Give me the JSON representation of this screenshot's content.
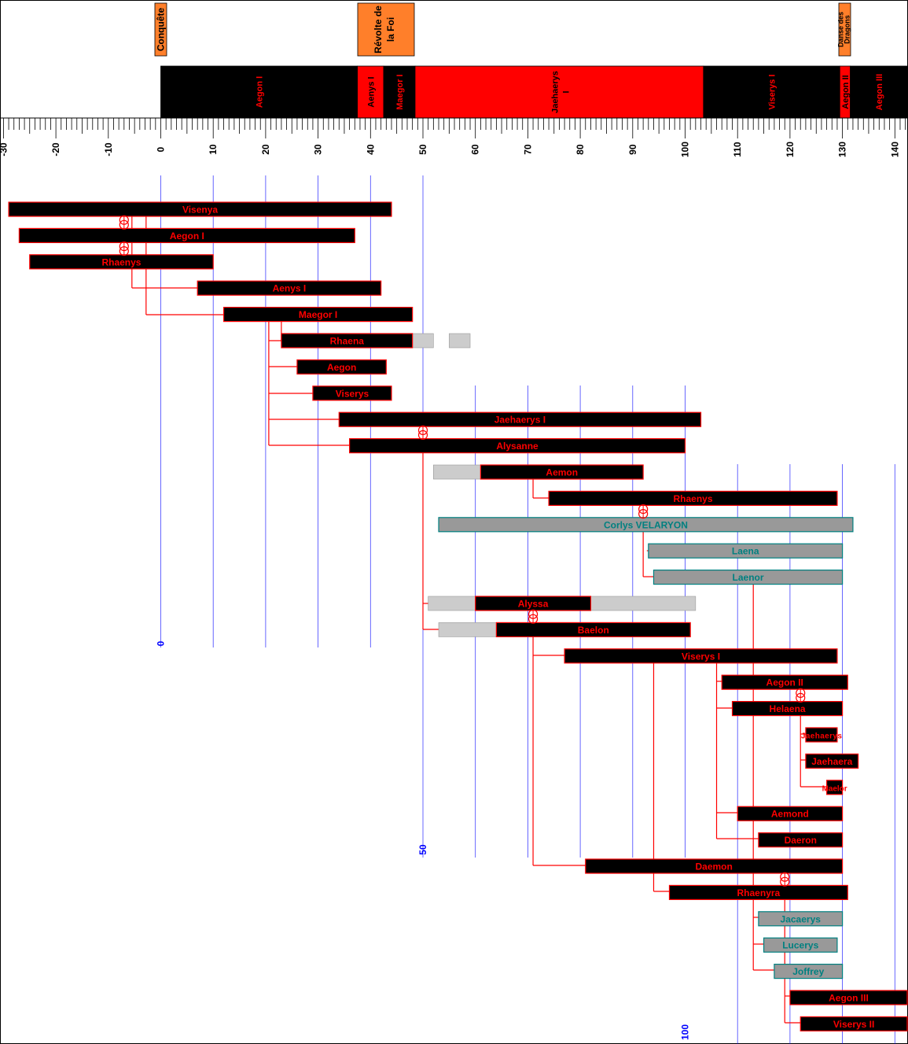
{
  "colors": {
    "red": "#ff0000",
    "black": "#000000",
    "gray": "#999999",
    "light_gray": "#cccccc",
    "teal": "#008080",
    "blue": "#0000ff",
    "orange": "#ff7f2a"
  },
  "events": [
    {
      "label": "Conquête",
      "start": 0,
      "end": 0
    },
    {
      "label": "Révolte de la Foi",
      "start": 37.5,
      "end": 48
    },
    {
      "label": "Danse des Dragons",
      "start": 129.5,
      "end": 131
    }
  ],
  "reigns": [
    {
      "label": "Aegon I",
      "start": 0,
      "end": 37.5,
      "color": "black"
    },
    {
      "label": "Aenys I",
      "start": 37.5,
      "end": 42.5,
      "color": "red"
    },
    {
      "label": "Maegor I",
      "start": 42.5,
      "end": 48.5,
      "color": "black"
    },
    {
      "label": "Jaehaerys I",
      "start": 48.5,
      "end": 103.5,
      "color": "red"
    },
    {
      "label": "Viserys I",
      "start": 103.5,
      "end": 129.5,
      "color": "black"
    },
    {
      "label": "Aegon II",
      "start": 129.5,
      "end": 131.5,
      "color": "red"
    },
    {
      "label": "Aegon III",
      "start": 131.5,
      "end": 143,
      "color": "black"
    }
  ],
  "axis": {
    "ticks": [
      "-30",
      "-20",
      "-10",
      "0",
      "10",
      "20",
      "30",
      "40",
      "50",
      "60",
      "70",
      "80",
      "90",
      "100",
      "110",
      "120",
      "130",
      "140"
    ],
    "marker_labels": [
      "0",
      "50",
      "100"
    ]
  },
  "people": [
    {
      "name": "Visenya",
      "start": -29,
      "end": 44,
      "style": "royal"
    },
    {
      "name": "Aegon I",
      "start": -27,
      "end": 37,
      "style": "royal"
    },
    {
      "name": "Rhaenys",
      "start": -25,
      "end": 10,
      "style": "royal"
    },
    {
      "name": "Aenys I",
      "start": 7,
      "end": 42,
      "style": "royal"
    },
    {
      "name": "Maegor I",
      "start": 12,
      "end": 48,
      "style": "royal"
    },
    {
      "name": "Rhaena",
      "start": 23,
      "end": 48,
      "style": "royal"
    },
    {
      "name": "Aegon",
      "start": 26,
      "end": 43,
      "style": "royal"
    },
    {
      "name": "Viserys",
      "start": 29,
      "end": 44,
      "style": "royal"
    },
    {
      "name": "Jaehaerys I",
      "start": 34,
      "end": 103,
      "style": "royal"
    },
    {
      "name": "Alysanne",
      "start": 36,
      "end": 100,
      "style": "royal"
    },
    {
      "name": "Aemon",
      "start": 61,
      "end": 92,
      "style": "royal"
    },
    {
      "name": "Rhaenys",
      "start": 74,
      "end": 129,
      "style": "royal"
    },
    {
      "name": "Corlys VELARYON",
      "start": 53,
      "end": 132,
      "style": "other"
    },
    {
      "name": "Laena",
      "start": 93,
      "end": 130,
      "style": "other"
    },
    {
      "name": "Laenor",
      "start": 94,
      "end": 130,
      "style": "other"
    },
    {
      "name": "Alyssa",
      "start": 60,
      "end": 82,
      "style": "royal"
    },
    {
      "name": "Baelon",
      "start": 64,
      "end": 101,
      "style": "royal"
    },
    {
      "name": "Viserys I",
      "start": 77,
      "end": 129,
      "style": "royal"
    },
    {
      "name": "Aegon II",
      "start": 107,
      "end": 131,
      "style": "royal"
    },
    {
      "name": "Helaena",
      "start": 109,
      "end": 130,
      "style": "royal"
    },
    {
      "name": "Jaehaerys",
      "start": 123,
      "end": 129,
      "style": "royal"
    },
    {
      "name": "Jaehaera",
      "start": 123,
      "end": 133,
      "style": "royal"
    },
    {
      "name": "Maelor",
      "start": 127,
      "end": 130,
      "style": "royal"
    },
    {
      "name": "Aemond",
      "start": 110,
      "end": 130,
      "style": "royal"
    },
    {
      "name": "Daeron",
      "start": 114,
      "end": 130,
      "style": "royal"
    },
    {
      "name": "Daemon",
      "start": 81,
      "end": 130,
      "style": "royal"
    },
    {
      "name": "Rhaenyra",
      "start": 97,
      "end": 131,
      "style": "royal"
    },
    {
      "name": "Jacaerys",
      "start": 114,
      "end": 130,
      "style": "other"
    },
    {
      "name": "Lucerys",
      "start": 115,
      "end": 129,
      "style": "other"
    },
    {
      "name": "Joffrey",
      "start": 117,
      "end": 130,
      "style": "other"
    },
    {
      "name": "Aegon III",
      "start": 120,
      "end": 157,
      "style": "royal"
    },
    {
      "name": "Viserys II",
      "start": 122,
      "end": 157,
      "style": "royal"
    }
  ],
  "uncertain_spans": [
    {
      "row": 5,
      "start": 48,
      "end": 52
    },
    {
      "row": 5,
      "start": 55,
      "end": 59
    },
    {
      "row": 10,
      "start": 52,
      "end": 61
    },
    {
      "row": 15,
      "start": 51,
      "end": 60
    },
    {
      "row": 15,
      "start": 82,
      "end": 102
    },
    {
      "row": 16,
      "start": 53,
      "end": 64
    }
  ],
  "marriages": [
    {
      "a": 0,
      "b": 1,
      "year": -7
    },
    {
      "a": 1,
      "b": 2,
      "year": -7
    },
    {
      "a": 8,
      "b": 9,
      "year": 50
    },
    {
      "a": 11,
      "b": 12,
      "year": 92
    },
    {
      "a": 15,
      "b": 16,
      "year": 71
    },
    {
      "a": 18,
      "b": 19,
      "year": 122
    },
    {
      "a": 25,
      "b": 26,
      "year": 119
    }
  ]
}
